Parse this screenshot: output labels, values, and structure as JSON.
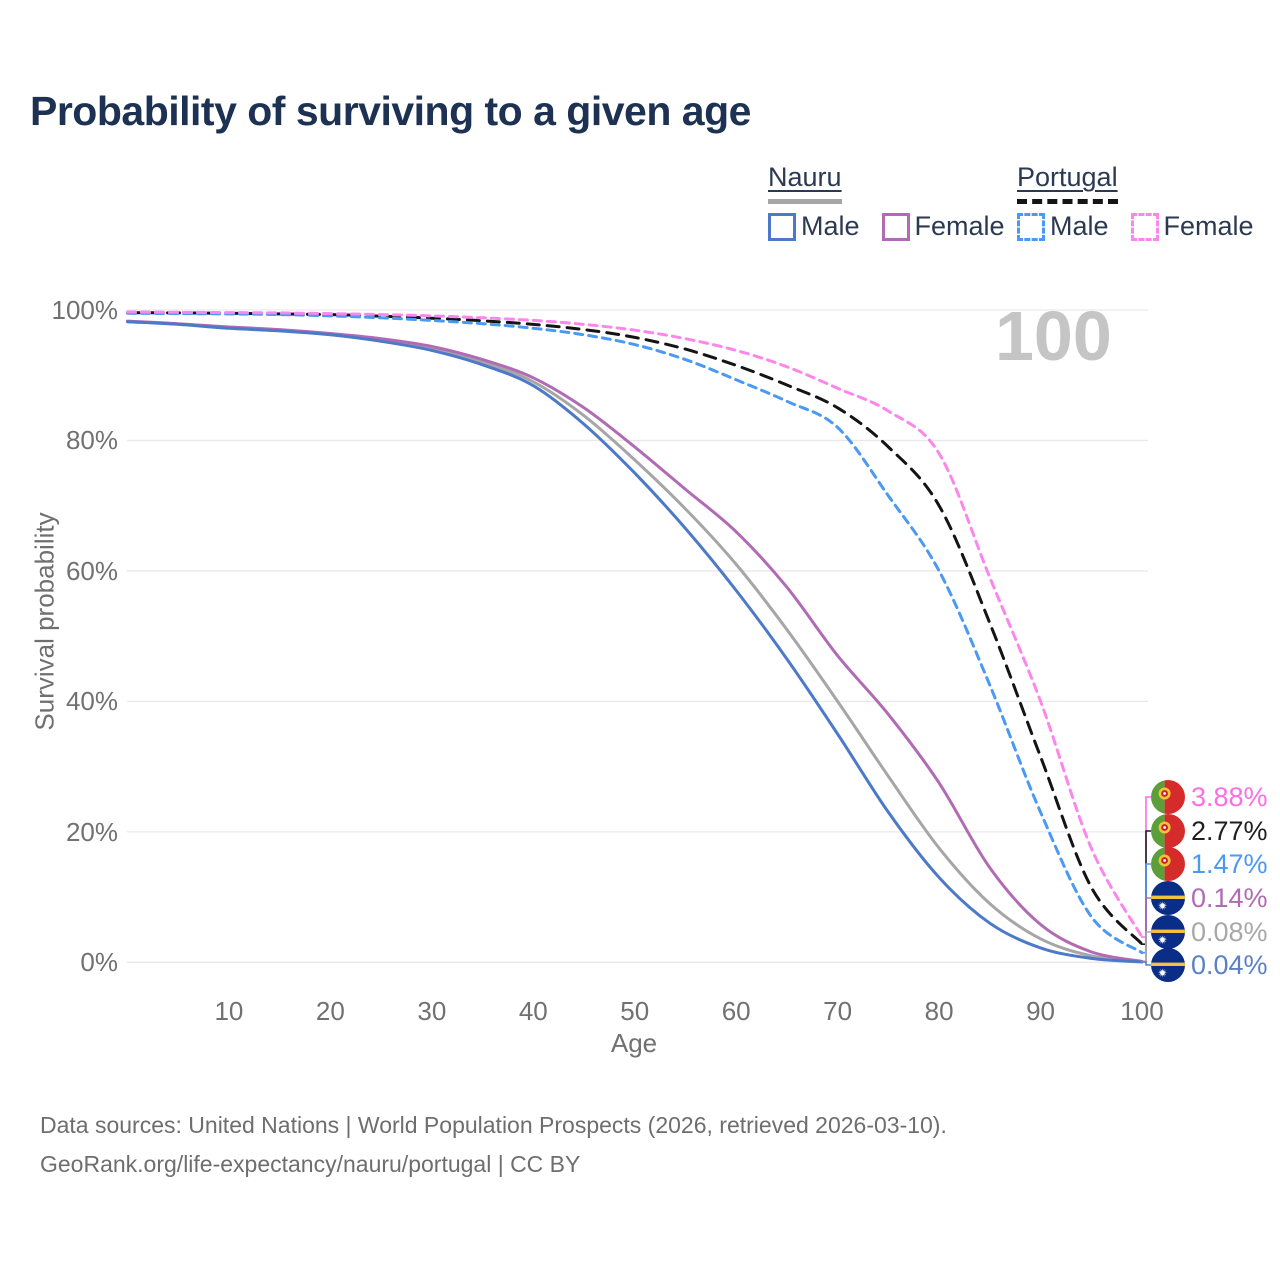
{
  "title": "Probability of surviving to a given age",
  "watermark": "100",
  "legend": {
    "groups": [
      {
        "country": "Nauru",
        "line_style": "solid",
        "items": [
          {
            "label": "Male",
            "color": "#4d79c9"
          },
          {
            "label": "Female",
            "color": "#b16bb4"
          }
        ]
      },
      {
        "country": "Portugal",
        "line_style": "dashed",
        "items": [
          {
            "label": "Male",
            "color": "#4a99f2"
          },
          {
            "label": "Female",
            "color": "#fb87ec"
          }
        ]
      }
    ]
  },
  "axes": {
    "y": {
      "label": "Survival probability",
      "ticks": [
        {
          "label": "0%",
          "value": 0
        },
        {
          "label": "20%",
          "value": 20
        },
        {
          "label": "40%",
          "value": 40
        },
        {
          "label": "60%",
          "value": 60
        },
        {
          "label": "80%",
          "value": 80
        },
        {
          "label": "100%",
          "value": 100
        }
      ]
    },
    "x": {
      "label": "Age",
      "ticks": [
        {
          "label": "10",
          "value": 10
        },
        {
          "label": "20",
          "value": 20
        },
        {
          "label": "30",
          "value": 30
        },
        {
          "label": "40",
          "value": 40
        },
        {
          "label": "50",
          "value": 50
        },
        {
          "label": "60",
          "value": 60
        },
        {
          "label": "70",
          "value": 70
        },
        {
          "label": "80",
          "value": 80
        },
        {
          "label": "90",
          "value": 90
        },
        {
          "label": "100",
          "value": 100
        }
      ]
    }
  },
  "end_labels": [
    {
      "series": "portugal_female",
      "value": "3.88%",
      "color": "#fb6ee4",
      "flag": "portugal"
    },
    {
      "series": "portugal_total",
      "value": "2.77%",
      "color": "#1f1f1f",
      "flag": "portugal"
    },
    {
      "series": "portugal_male",
      "value": "1.47%",
      "color": "#4a99f2",
      "flag": "portugal"
    },
    {
      "series": "nauru_female",
      "value": "0.14%",
      "color": "#b16bb4",
      "flag": "nauru"
    },
    {
      "series": "nauru_total",
      "value": "0.08%",
      "color": "#a8a8a8",
      "flag": "nauru"
    },
    {
      "series": "nauru_male",
      "value": "0.04%",
      "color": "#5b80c7",
      "flag": "nauru"
    }
  ],
  "footer": {
    "line1": "Data sources: United Nations | World Population Prospects (2026, retrieved 2026-03-10).",
    "line2": "GeoRank.org/life-expectancy/nauru/portugal | CC BY"
  },
  "chart_data": {
    "type": "line",
    "title": "Probability of surviving to a given age",
    "xlabel": "Age",
    "ylabel": "Survival probability",
    "xlim": [
      0,
      100
    ],
    "ylim": [
      0,
      100
    ],
    "grid": "horizontal",
    "legend_position": "top-right",
    "x": [
      0,
      5,
      10,
      15,
      20,
      25,
      30,
      35,
      40,
      45,
      50,
      55,
      60,
      65,
      70,
      75,
      80,
      85,
      90,
      95,
      100
    ],
    "series": [
      {
        "id": "nauru_total",
        "name": "Nauru Both sexes",
        "color": "#a6a6a6",
        "line_style": "solid",
        "end_label": "0.08%",
        "values": [
          98.2,
          97.85,
          97.3,
          96.9,
          96.3,
          95.4,
          94.1,
          92.0,
          89.0,
          83.8,
          77.0,
          69.5,
          61.0,
          51.0,
          40.0,
          28.5,
          17.5,
          9.0,
          3.6,
          1.0,
          0.08
        ]
      },
      {
        "id": "nauru_female",
        "name": "Nauru Female",
        "color": "#b16bb4",
        "line_style": "solid",
        "end_label": "0.14%",
        "values": [
          98.3,
          97.9,
          97.4,
          97.0,
          96.4,
          95.6,
          94.4,
          92.4,
          89.6,
          85.0,
          79.0,
          72.5,
          66.0,
          57.5,
          47.0,
          38.0,
          27.5,
          14.5,
          5.8,
          1.6,
          0.14
        ]
      },
      {
        "id": "nauru_male",
        "name": "Nauru Male",
        "color": "#4d79c9",
        "line_style": "solid",
        "end_label": "0.04%",
        "values": [
          98.2,
          97.8,
          97.2,
          96.8,
          96.2,
          95.2,
          93.8,
          91.6,
          88.4,
          82.5,
          75.0,
          66.5,
          57.0,
          46.5,
          35.0,
          23.0,
          13.0,
          6.0,
          2.2,
          0.6,
          0.04
        ]
      },
      {
        "id": "portugal_total",
        "name": "Portugal Both sexes",
        "color": "#141414",
        "line_style": "dashed",
        "end_label": "2.77%",
        "values": [
          99.6,
          99.55,
          99.5,
          99.4,
          99.3,
          99.05,
          98.75,
          98.35,
          97.8,
          97.0,
          95.8,
          94.0,
          91.5,
          88.5,
          85.0,
          79.0,
          70.0,
          52.0,
          31.5,
          11.5,
          2.77
        ]
      },
      {
        "id": "portugal_male",
        "name": "Portugal Male",
        "color": "#4a99f2",
        "line_style": "dashed",
        "end_label": "1.47%",
        "values": [
          99.5,
          99.45,
          99.4,
          99.3,
          99.1,
          98.8,
          98.4,
          97.9,
          97.2,
          96.2,
          94.7,
          92.4,
          89.3,
          86.0,
          82.0,
          71.5,
          60.0,
          42.5,
          23.0,
          7.0,
          1.47
        ]
      },
      {
        "id": "portugal_female",
        "name": "Portugal Female",
        "color": "#fb87ec",
        "line_style": "dashed",
        "end_label": "3.88%",
        "values": [
          99.7,
          99.65,
          99.6,
          99.55,
          99.45,
          99.3,
          99.1,
          98.8,
          98.4,
          97.8,
          96.9,
          95.6,
          93.8,
          91.3,
          88.0,
          84.5,
          78.0,
          59.0,
          40.0,
          17.5,
          3.88
        ]
      }
    ]
  }
}
